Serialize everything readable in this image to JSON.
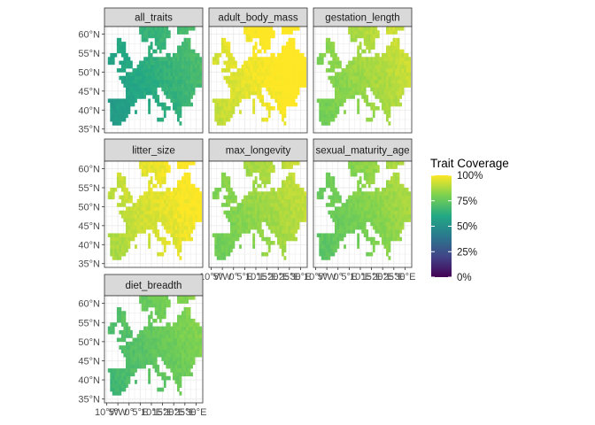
{
  "chart_data": {
    "type": "heatmap",
    "description_kind": "faceted raster maps of Europe",
    "legend": {
      "title": "Trait Coverage",
      "labels": [
        "100%",
        "75%",
        "50%",
        "25%",
        "0%"
      ],
      "range": [
        0,
        100
      ],
      "palette": [
        "#fde725",
        "#7ad151",
        "#22a884",
        "#2a788e",
        "#414487",
        "#440154"
      ]
    },
    "x_ticks": [
      "10°W",
      "5°W",
      "0°",
      "5°E",
      "10°E",
      "15°E",
      "20°E",
      "25°E",
      "30°E"
    ],
    "y_ticks": [
      "60°N",
      "55°N",
      "50°N",
      "45°N",
      "40°N",
      "35°N"
    ],
    "xlim": [
      -11,
      33
    ],
    "ylim": [
      34,
      62
    ],
    "panels": [
      {
        "name": "all_traits",
        "coverage": 62
      },
      {
        "name": "adult_body_mass",
        "coverage": 98
      },
      {
        "name": "gestation_length",
        "coverage": 85
      },
      {
        "name": "litter_size",
        "coverage": 94
      },
      {
        "name": "max_longevity",
        "coverage": 84
      },
      {
        "name": "sexual_maturity_age",
        "coverage": 80
      },
      {
        "name": "diet_breadth",
        "coverage": 74
      }
    ]
  }
}
